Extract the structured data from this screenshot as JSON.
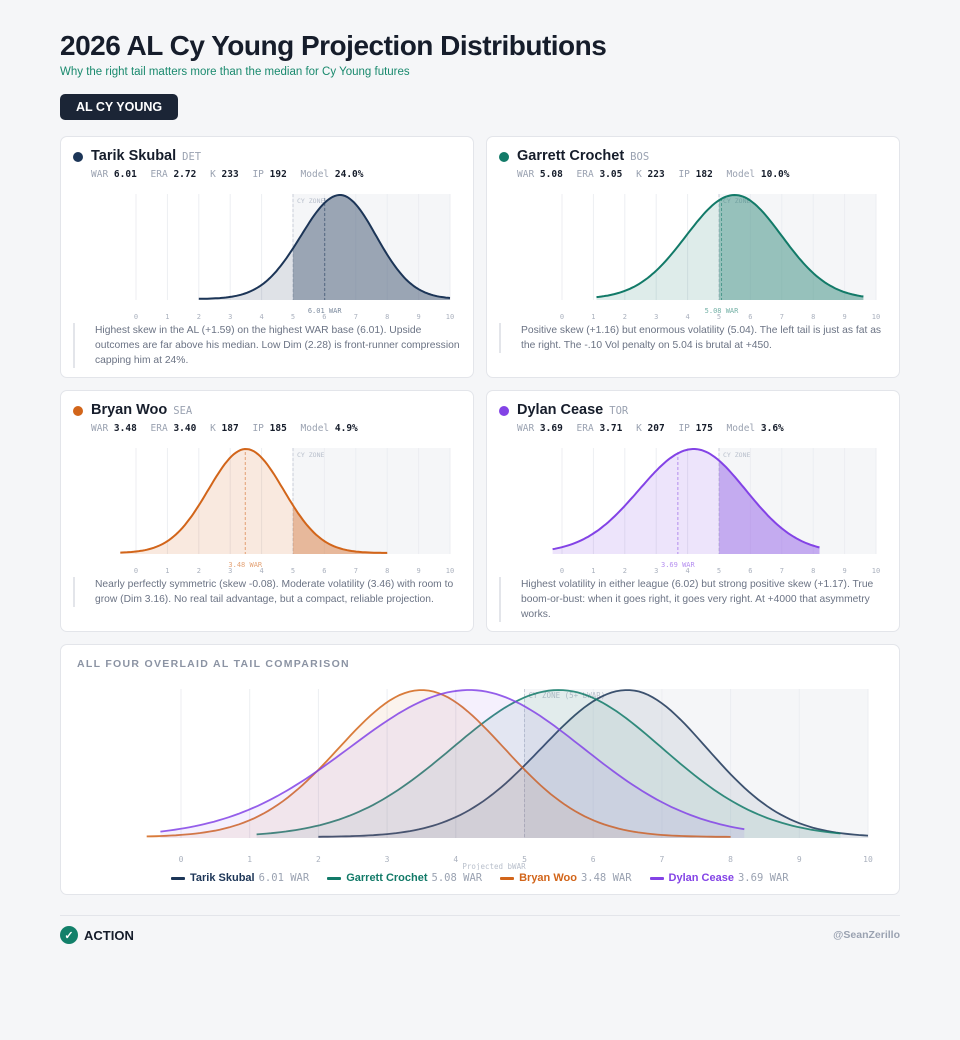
{
  "header": {
    "title": "2026 AL Cy Young Projection Distributions",
    "subtitle": "Why the right tail matters more than the median for Cy Young futures",
    "badge": "AL CY YOUNG"
  },
  "colors": {
    "skubal": "#1c3557",
    "crochet": "#127a68",
    "woo": "#d2651a",
    "cease": "#8343e6",
    "zone_bg": "#f5f6f8"
  },
  "stat_labels": {
    "war": "WAR",
    "era": "ERA",
    "k": "K",
    "ip": "IP",
    "model": "Model"
  },
  "pitchers": [
    {
      "id": "skubal",
      "name": "Tarik Skubal",
      "team": "DET",
      "war": "6.01",
      "era": "2.72",
      "k": "233",
      "ip": "192",
      "model": "24.0%",
      "war_marker_label": "6.01 WAR",
      "note": "Highest skew in the AL (+1.59) on the highest WAR base (6.01). Upside outcomes are far above his median. Low Dim (2.28) is front-runner compression capping him at 24%."
    },
    {
      "id": "crochet",
      "name": "Garrett Crochet",
      "team": "BOS",
      "war": "5.08",
      "era": "3.05",
      "k": "223",
      "ip": "182",
      "model": "10.0%",
      "war_marker_label": "5.08 WAR",
      "note": "Positive skew (+1.16) but enormous volatility (5.04). The left tail is just as fat as the right. The -.10 Vol penalty on 5.04 is brutal at +450."
    },
    {
      "id": "woo",
      "name": "Bryan Woo",
      "team": "SEA",
      "war": "3.48",
      "era": "3.40",
      "k": "187",
      "ip": "185",
      "model": "4.9%",
      "war_marker_label": "3.48 WAR",
      "note": "Nearly perfectly symmetric (skew -0.08). Moderate volatility (3.46) with room to grow (Dim 3.16). No real tail advantage, but a compact, reliable projection."
    },
    {
      "id": "cease",
      "name": "Dylan Cease",
      "team": "TOR",
      "war": "3.69",
      "era": "3.71",
      "k": "207",
      "ip": "175",
      "model": "3.6%",
      "war_marker_label": "3.69 WAR",
      "note": "Highest volatility in either league (6.02) but strong positive skew (+1.17). True boom-or-bust: when it goes right, it goes very right. At +4000 that asymmetry works."
    }
  ],
  "mini_chart": {
    "zone_label": "CY ZONE"
  },
  "overlay": {
    "title": "ALL FOUR OVERLAID AL TAIL COMPARISON",
    "zone_label": "CY ZONE (5+ bWAR)",
    "xlabel": "Projected bWAR",
    "legend_suffix": "WAR"
  },
  "chart_data": [
    {
      "type": "area",
      "title": "Tarik Skubal DET",
      "xlabel": "",
      "ylabel": "",
      "xlim": [
        0,
        10
      ],
      "x_ticks": [
        "0",
        "1",
        "2",
        "3",
        "4",
        "5",
        "6",
        "7",
        "8",
        "9",
        "10"
      ],
      "cy_zone_start": 5,
      "median_war": 6.01,
      "series": [
        {
          "name": "Tarik Skubal",
          "dist": {
            "support": [
              2,
              10
            ],
            "mode": 6.5,
            "sd_left": 1.25,
            "sd_right": 1.15
          }
        }
      ]
    },
    {
      "type": "area",
      "title": "Garrett Crochet BOS",
      "xlim": [
        0,
        10
      ],
      "x_ticks": [
        "0",
        "1",
        "2",
        "3",
        "4",
        "5",
        "6",
        "7",
        "8",
        "9",
        "10"
      ],
      "cy_zone_start": 5,
      "median_war": 5.08,
      "series": [
        {
          "name": "Garrett Crochet",
          "dist": {
            "support": [
              1.1,
              9.6
            ],
            "mode": 5.5,
            "sd_left": 1.55,
            "sd_right": 1.5
          }
        }
      ]
    },
    {
      "type": "area",
      "title": "Bryan Woo SEA",
      "xlim": [
        0,
        10
      ],
      "x_ticks": [
        "0",
        "1",
        "2",
        "3",
        "4",
        "5",
        "6",
        "7",
        "8",
        "9",
        "10"
      ],
      "cy_zone_start": 5,
      "median_war": 3.48,
      "series": [
        {
          "name": "Bryan Woo",
          "dist": {
            "support": [
              -0.5,
              8
            ],
            "mode": 3.5,
            "sd_left": 1.2,
            "sd_right": 1.2
          }
        }
      ]
    },
    {
      "type": "area",
      "title": "Dylan Cease TOR",
      "xlim": [
        0,
        10
      ],
      "x_ticks": [
        "0",
        "1",
        "2",
        "3",
        "4",
        "5",
        "6",
        "7",
        "8",
        "9",
        "10"
      ],
      "cy_zone_start": 5,
      "median_war": 3.69,
      "series": [
        {
          "name": "Dylan Cease",
          "dist": {
            "support": [
              -0.3,
              8.2
            ],
            "mode": 4.2,
            "sd_left": 1.75,
            "sd_right": 1.65
          }
        }
      ]
    },
    {
      "type": "area",
      "title": "ALL FOUR OVERLAID AL TAIL COMPARISON",
      "xlabel": "Projected bWAR",
      "xlim": [
        0,
        10
      ],
      "x_ticks": [
        "0",
        "1",
        "2",
        "3",
        "4",
        "5",
        "6",
        "7",
        "8",
        "9",
        "10"
      ],
      "cy_zone_start": 5,
      "legend": "bottom",
      "series": [
        {
          "name": "Tarik Skubal",
          "war": 6.01,
          "dist": {
            "support": [
              2,
              10
            ],
            "mode": 6.5,
            "sd_left": 1.25,
            "sd_right": 1.15
          }
        },
        {
          "name": "Garrett Crochet",
          "war": 5.08,
          "dist": {
            "support": [
              1.1,
              9.6
            ],
            "mode": 5.5,
            "sd_left": 1.55,
            "sd_right": 1.5
          }
        },
        {
          "name": "Bryan Woo",
          "war": 3.48,
          "dist": {
            "support": [
              -0.5,
              8
            ],
            "mode": 3.5,
            "sd_left": 1.2,
            "sd_right": 1.2
          }
        },
        {
          "name": "Dylan Cease",
          "war": 3.69,
          "dist": {
            "support": [
              -0.3,
              8.2
            ],
            "mode": 4.2,
            "sd_left": 1.75,
            "sd_right": 1.65
          }
        }
      ]
    }
  ],
  "footer": {
    "brand": "ACTION",
    "check_glyph": "✓",
    "handle": "@SeanZerillo"
  }
}
